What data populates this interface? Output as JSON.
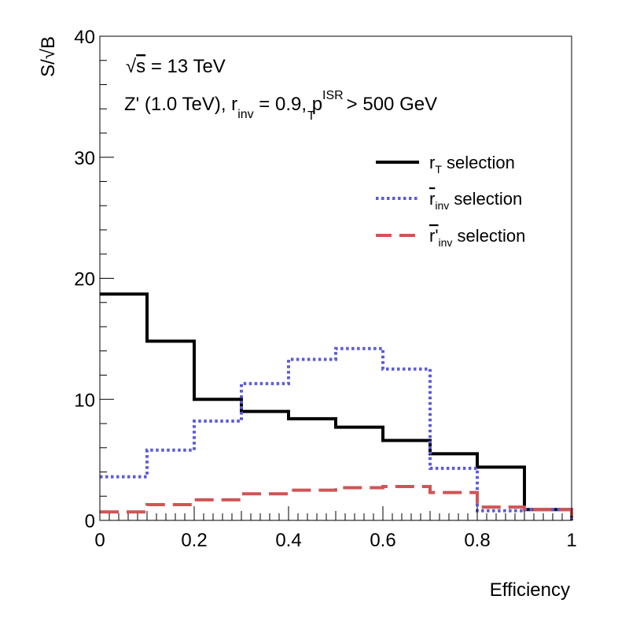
{
  "chart_data": {
    "type": "line",
    "step": true,
    "xlabel": "Efficiency",
    "ylabel": "S/√B",
    "xlim": [
      0,
      1
    ],
    "ylim": [
      0,
      40
    ],
    "x_ticks": [
      "0",
      "0.2",
      "0.4",
      "0.6",
      "0.8",
      "1"
    ],
    "y_ticks": [
      "0",
      "10",
      "20",
      "30",
      "40"
    ],
    "grid": false,
    "legend_position": "top-right",
    "bin_edges": [
      0,
      0.1,
      0.2,
      0.3,
      0.4,
      0.5,
      0.6,
      0.7,
      0.8,
      0.9,
      1.0
    ],
    "annotations": {
      "energy": {
        "sqrt_symbol": "√",
        "s": "s",
        "rest": " = 13 TeV"
      },
      "model": {
        "part1": "Z' (1.0 TeV), r",
        "sub1": "inv",
        "part2": " = 0.9, p",
        "sup2": "ISR",
        "sub2": "T",
        "part3": " > 500 GeV"
      }
    },
    "series": [
      {
        "name": "r_T selection",
        "legend": {
          "main": "r",
          "sub": "T",
          "rest": " selection"
        },
        "color": "#000000",
        "style": "solid",
        "values": [
          18.7,
          14.8,
          10.0,
          9.0,
          8.4,
          7.7,
          6.6,
          5.5,
          4.4,
          0.9
        ]
      },
      {
        "name": "r_inv selection",
        "legend": {
          "main": "r",
          "sub": "inv",
          "rest": " selection"
        },
        "color": "#5b5bd9",
        "style": "dotted",
        "values": [
          3.6,
          5.8,
          8.2,
          11.3,
          13.3,
          14.2,
          12.5,
          4.3,
          0.8,
          0.9
        ]
      },
      {
        "name": "r'_inv selection",
        "legend": {
          "main": "r'",
          "sub": "inv",
          "rest": " selection"
        },
        "color": "#d05454",
        "style": "dashed",
        "values": [
          0.7,
          1.3,
          1.7,
          2.2,
          2.5,
          2.7,
          2.8,
          2.3,
          1.1,
          0.9
        ]
      }
    ]
  }
}
